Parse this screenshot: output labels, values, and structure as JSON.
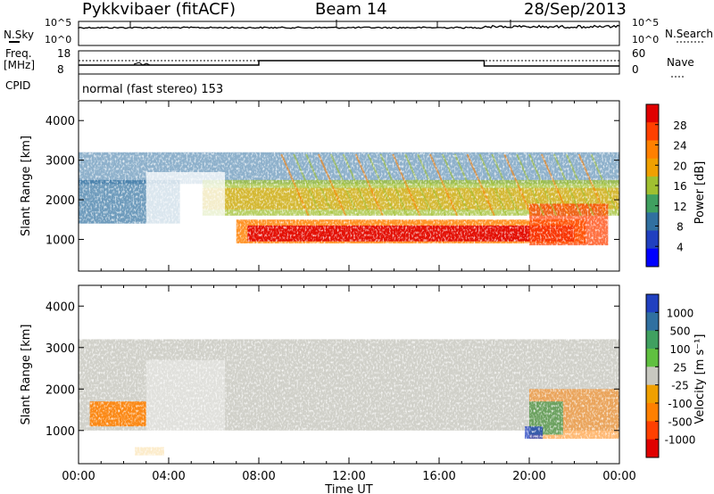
{
  "header": {
    "title": "Pykkvibaer (fitACF)",
    "beam": "Beam 14",
    "date": "28/Sep/2013"
  },
  "status_panels": {
    "nsky_label": "N.Sky",
    "nsky_ticks": [
      "10^5",
      "10^0"
    ],
    "nsearch_label": "N.Search",
    "nsearch_ticks": [
      "10^5",
      "10^0"
    ],
    "freq_label_1": "Freq.",
    "freq_label_2": "[MHz]",
    "freq_ticks": [
      "18",
      "8"
    ],
    "nave_label": "Nave",
    "nave_ticks": [
      "60",
      "0"
    ],
    "cpid_label": "CPID",
    "cpid_text": "normal (fast stereo) 153",
    "freq_levels_mhz": [
      10.5,
      11.7,
      10.5
    ],
    "freq_change_times": [
      "08:00",
      "18:00"
    ]
  },
  "chart_data": [
    {
      "type": "heatmap",
      "name": "power",
      "ylabel": "Slant Range [km]",
      "ylim": [
        200,
        4500
      ],
      "yticks": [
        "4000",
        "3000",
        "2000",
        "1000"
      ],
      "xlim": [
        "00:00",
        "24:00"
      ],
      "colorbar": {
        "label": "Power [dB]",
        "ticks": [
          "28",
          "24",
          "20",
          "16",
          "12",
          "8",
          "4"
        ],
        "colors": [
          "#e00000",
          "#ff4000",
          "#ff8000",
          "#f0a000",
          "#a0c030",
          "#40a060",
          "#3070a0",
          "#2040c0",
          "#0000ff"
        ]
      },
      "features": [
        {
          "what": "strong backscatter band",
          "time": [
            "07:30",
            "22:00"
          ],
          "range_km": [
            900,
            1400
          ],
          "power_db": 28
        },
        {
          "what": "moderate band",
          "time": [
            "06:00",
            "24:00"
          ],
          "range_km": [
            1600,
            2400
          ],
          "power_db": 16
        },
        {
          "what": "far scatter",
          "time": [
            "00:00",
            "24:00"
          ],
          "range_km": [
            2400,
            3200
          ],
          "power_db": 10
        },
        {
          "what": "early morning patch",
          "time": [
            "00:00",
            "04:30"
          ],
          "range_km": [
            1400,
            2200
          ],
          "power_db": 6
        }
      ]
    },
    {
      "type": "heatmap",
      "name": "velocity",
      "ylabel": "Slant Range [km]",
      "ylim": [
        200,
        4500
      ],
      "yticks": [
        "4000",
        "3000",
        "2000",
        "1000"
      ],
      "xlabel": "Time UT",
      "xticks": [
        "00:00",
        "04:00",
        "08:00",
        "12:00",
        "16:00",
        "20:00",
        "00:00"
      ],
      "colorbar": {
        "label": "Velocity [m s⁻¹]",
        "ticks": [
          "1000",
          "500",
          "100",
          "25",
          "-25",
          "-100",
          "-500",
          "-1000"
        ],
        "colors": [
          "#2040c0",
          "#3070a0",
          "#40a060",
          "#60c040",
          "#c8c8c0",
          "#f0a000",
          "#ff8000",
          "#ff4000",
          "#e00000"
        ]
      },
      "features": [
        {
          "what": "ground scatter",
          "time": [
            "00:00",
            "24:00"
          ],
          "range_km": [
            900,
            3200
          ],
          "velocity_ms": 0
        },
        {
          "what": "away-flow patch",
          "time": [
            "00:30",
            "03:00"
          ],
          "range_km": [
            1100,
            1700
          ],
          "velocity_ms": -300
        },
        {
          "what": "mixed flow region",
          "time": [
            "20:00",
            "24:00"
          ],
          "range_km": [
            800,
            2000
          ],
          "velocity_ms": -200
        }
      ]
    }
  ]
}
